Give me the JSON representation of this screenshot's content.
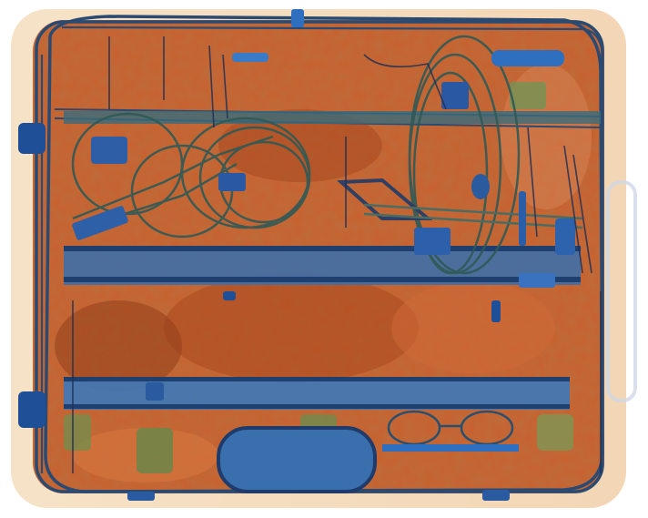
{
  "image": {
    "kind": "x-ray baggage scan",
    "subject": "suitcase",
    "palette": {
      "background": "#ffffff",
      "organic": "#c4572a",
      "organic_dark": "#8f3a1a",
      "organic_light": "#e9a47a",
      "mixed": "#4f7a4a",
      "metal": "#2f6fc0",
      "metal_dark": "#1f3f88",
      "frame": "#233f6a",
      "edge_cream": "#f2d7b0"
    }
  }
}
